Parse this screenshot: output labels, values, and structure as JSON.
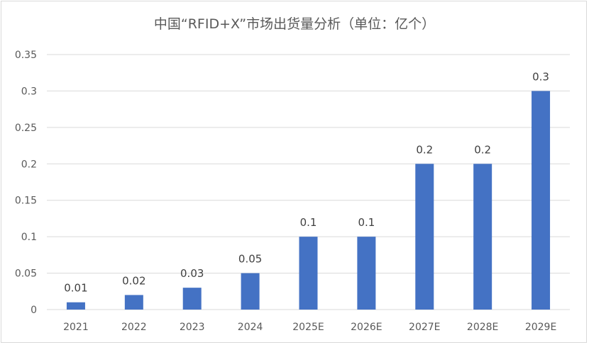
{
  "chart_data": {
    "type": "bar",
    "title": "中国“RFID+X”市场出货量分析（单位：亿个）",
    "categories": [
      "2021",
      "2022",
      "2023",
      "2024",
      "2025E",
      "2026E",
      "2027E",
      "2028E",
      "2029E"
    ],
    "values": [
      0.01,
      0.02,
      0.03,
      0.05,
      0.1,
      0.1,
      0.2,
      0.2,
      0.3
    ],
    "data_labels": [
      "0.01",
      "0.02",
      "0.03",
      "0.05",
      "0.1",
      "0.1",
      "0.2",
      "0.2",
      "0.3"
    ],
    "xlabel": "",
    "ylabel": "",
    "ylim": [
      0,
      0.35
    ],
    "yticks": [
      0,
      0.05,
      0.1,
      0.15,
      0.2,
      0.25,
      0.3,
      0.35
    ],
    "ytick_labels": [
      "0",
      "0.05",
      "0.1",
      "0.15",
      "0.2",
      "0.25",
      "0.3",
      "0.35"
    ],
    "grid": true,
    "legend": "none",
    "bar_color": "#4472c4",
    "grid_color": "#d9d9d9"
  }
}
